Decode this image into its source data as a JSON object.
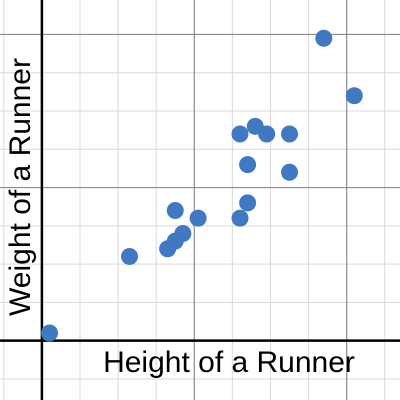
{
  "chart_data": {
    "type": "scatter",
    "title": "",
    "xlabel": "Height of a Runner",
    "ylabel": "Weight of a Runner",
    "xlim": [
      -1.1,
      9.4
    ],
    "ylim": [
      -1.55,
      8.9
    ],
    "grid": true,
    "tick_labels_shown": false,
    "x_major_every": 4,
    "y_major_every": 4,
    "colors": {
      "point": "#4079c1",
      "minor_grid": "#d9d9d9",
      "major_grid": "#8c8c8c",
      "axis": "#000000"
    },
    "series": [
      {
        "points": [
          {
            "x": 0.2,
            "y": 0.2
          },
          {
            "x": 2.3,
            "y": 2.2
          },
          {
            "x": 3.5,
            "y": 3.4
          },
          {
            "x": 3.3,
            "y": 2.4
          },
          {
            "x": 3.5,
            "y": 2.6
          },
          {
            "x": 3.7,
            "y": 2.8
          },
          {
            "x": 4.1,
            "y": 3.2
          },
          {
            "x": 5.2,
            "y": 3.2
          },
          {
            "x": 5.4,
            "y": 3.6
          },
          {
            "x": 5.4,
            "y": 4.6
          },
          {
            "x": 5.2,
            "y": 5.4
          },
          {
            "x": 5.6,
            "y": 5.6
          },
          {
            "x": 5.9,
            "y": 5.4
          },
          {
            "x": 6.5,
            "y": 5.4
          },
          {
            "x": 6.5,
            "y": 4.4
          },
          {
            "x": 7.4,
            "y": 7.9
          },
          {
            "x": 8.2,
            "y": 6.4
          }
        ]
      }
    ]
  }
}
